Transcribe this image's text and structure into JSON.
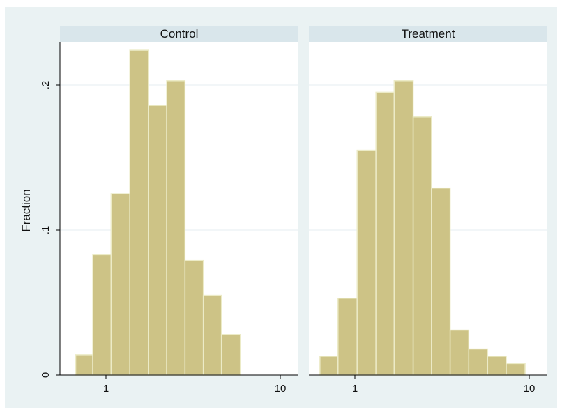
{
  "chart_data": {
    "type": "bar",
    "ylabel": "Fraction",
    "xscale": "log",
    "grid": true,
    "ylim": [
      0,
      0.225
    ],
    "yticks": [
      {
        "value": 0,
        "label": "0"
      },
      {
        "value": 0.1,
        "label": ".1"
      },
      {
        "value": 0.2,
        "label": ".2"
      }
    ],
    "xticks": [
      {
        "value": 1,
        "label": "1"
      },
      {
        "value": 10,
        "label": "10"
      }
    ],
    "colors": {
      "outer_background": "#eaf2f3",
      "plot_background": "#ffffff",
      "strip_background": "#d9e6eb",
      "bar_fill": "#cdc386",
      "bar_stroke": "#ecebc7",
      "grid": "#e6eef0",
      "axis": "#000000"
    },
    "panels": [
      {
        "title": "Control",
        "bins": [
          {
            "x0": 0.67,
            "x1": 0.84,
            "fraction": 0.014
          },
          {
            "x0": 0.84,
            "x1": 1.07,
            "fraction": 0.083
          },
          {
            "x0": 1.07,
            "x1": 1.37,
            "fraction": 0.125
          },
          {
            "x0": 1.37,
            "x1": 1.75,
            "fraction": 0.224
          },
          {
            "x0": 1.75,
            "x1": 2.23,
            "fraction": 0.186
          },
          {
            "x0": 2.23,
            "x1": 2.84,
            "fraction": 0.203
          },
          {
            "x0": 2.84,
            "x1": 3.62,
            "fraction": 0.079
          },
          {
            "x0": 3.62,
            "x1": 4.6,
            "fraction": 0.055
          },
          {
            "x0": 4.6,
            "x1": 5.9,
            "fraction": 0.028
          }
        ]
      },
      {
        "title": "Treatment",
        "bins": [
          {
            "x0": 0.63,
            "x1": 0.8,
            "fraction": 0.013
          },
          {
            "x0": 0.8,
            "x1": 1.03,
            "fraction": 0.053
          },
          {
            "x0": 1.03,
            "x1": 1.32,
            "fraction": 0.155
          },
          {
            "x0": 1.32,
            "x1": 1.68,
            "fraction": 0.195
          },
          {
            "x0": 1.68,
            "x1": 2.16,
            "fraction": 0.203
          },
          {
            "x0": 2.16,
            "x1": 2.75,
            "fraction": 0.178
          },
          {
            "x0": 2.75,
            "x1": 3.52,
            "fraction": 0.129
          },
          {
            "x0": 3.52,
            "x1": 4.5,
            "fraction": 0.031
          },
          {
            "x0": 4.5,
            "x1": 5.77,
            "fraction": 0.018
          },
          {
            "x0": 5.77,
            "x1": 7.38,
            "fraction": 0.013
          },
          {
            "x0": 7.38,
            "x1": 9.47,
            "fraction": 0.008
          }
        ]
      }
    ]
  }
}
